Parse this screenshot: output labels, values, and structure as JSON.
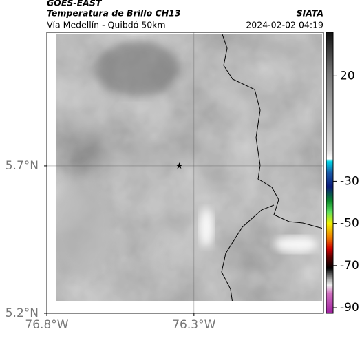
{
  "chart_data": {
    "type": "map",
    "title": "GOES-EAST",
    "subtitle": "Temperatura de Brillo CH13",
    "location": "Vía Medellín - Quibdó 50km",
    "source": "SIATA",
    "timestamp": "2024-02-02 04:19",
    "xlim": [
      -76.8,
      -75.86
    ],
    "ylim": [
      5.2,
      6.153
    ],
    "xticks": [
      {
        "value": -76.8,
        "label": "76.8°W"
      },
      {
        "value": -76.3,
        "label": "76.3°W"
      }
    ],
    "yticks": [
      {
        "value": 5.2,
        "label": "5.2°N"
      },
      {
        "value": 5.7,
        "label": "5.7°N"
      }
    ],
    "grid": true,
    "marker": {
      "x": -76.35,
      "y": 5.7
    },
    "colorbar": {
      "lim": [
        -92.6,
        40.7
      ],
      "ticks": [
        20,
        -30,
        -50,
        -70,
        -90
      ]
    }
  }
}
